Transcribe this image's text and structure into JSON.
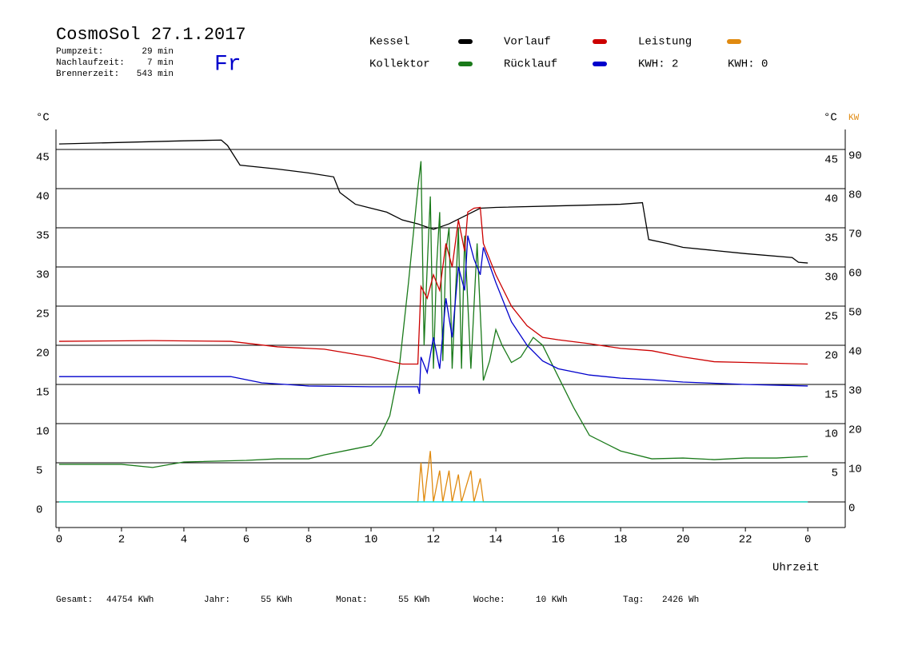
{
  "header": {
    "title": "CosmoSol 27.1.2017",
    "day": "Fr",
    "stats": [
      {
        "label": "Pumpzeit:",
        "value": "29 min"
      },
      {
        "label": "Nachlaufzeit:",
        "value": "7 min"
      },
      {
        "label": "Brennerzeit:",
        "value": "543 min"
      }
    ],
    "kwh": [
      {
        "text": "KWH: 2",
        "color": "#e08a10"
      },
      {
        "text": "KWH: 0",
        "color": "#8b2f8b"
      }
    ]
  },
  "chart_data": {
    "type": "line",
    "ylabel": "°C",
    "ylabel_right": "°C",
    "y2label": "KW",
    "xlabel": "Uhrzeit",
    "xlim": [
      -0.1,
      25.2
    ],
    "ylim": [
      -3.27,
      47.55
    ],
    "y2lim": [
      -6.54,
      95.1
    ],
    "xticks": [
      0,
      2,
      4,
      6,
      8,
      10,
      12,
      14,
      16,
      18,
      20,
      22,
      {
        "value": 24,
        "label": "0"
      }
    ],
    "yticks": [
      0,
      5,
      10,
      15,
      20,
      25,
      30,
      35,
      40,
      45
    ],
    "yticks_right": [
      5,
      10,
      15,
      20,
      25,
      30,
      35,
      40,
      45
    ],
    "y2ticks": [
      0,
      10,
      20,
      30,
      40,
      50,
      60,
      70,
      80,
      90
    ],
    "grid": true,
    "series": [
      {
        "name": "Kessel",
        "color": "#000000",
        "x": [
          0,
          2,
          4,
          5.2,
          5.4,
          5.8,
          7,
          8,
          8.8,
          9,
          9.5,
          10,
          10.5,
          11,
          11.5,
          12,
          12.5,
          13,
          13.5,
          14,
          16,
          18,
          18.7,
          18.9,
          19.5,
          20,
          22,
          23.5,
          23.7,
          24
        ],
        "values": [
          45.7,
          45.9,
          46.1,
          46.2,
          45.5,
          43,
          42.5,
          42,
          41.5,
          39.5,
          38,
          37.5,
          37,
          36,
          35.5,
          34.8,
          35.5,
          36.5,
          37.5,
          37.6,
          37.8,
          38,
          38.2,
          33.5,
          33,
          32.5,
          31.7,
          31.2,
          30.6,
          30.5
        ]
      },
      {
        "name": "Kollektor",
        "color": "#1a7a1a",
        "x": [
          0,
          2,
          3,
          4,
          6,
          7,
          8,
          8.5,
          9.5,
          10,
          10.3,
          10.6,
          10.9,
          11.2,
          11.5,
          11.6,
          11.7,
          11.8,
          11.9,
          12,
          12.1,
          12.2,
          12.3,
          12.4,
          12.5,
          12.6,
          12.8,
          12.9,
          13,
          13.2,
          13.4,
          13.6,
          13.8,
          14,
          14.2,
          14.5,
          14.8,
          15.2,
          15.5,
          16,
          16.5,
          17,
          18,
          19,
          20,
          21,
          22,
          23,
          24
        ],
        "values": [
          4.8,
          4.8,
          4.4,
          5.1,
          5.3,
          5.5,
          5.5,
          6,
          6.8,
          7.2,
          8.5,
          11,
          17,
          28,
          40,
          43.5,
          20,
          30,
          39,
          17,
          30,
          37,
          18,
          32,
          35,
          17,
          35,
          17,
          34,
          17,
          33,
          15.5,
          18,
          22,
          20,
          17.8,
          18.5,
          21,
          20,
          16,
          12,
          8.5,
          6.5,
          5.5,
          5.6,
          5.4,
          5.6,
          5.6,
          5.8
        ]
      },
      {
        "name": "Vorlauf",
        "color": "#cc0000",
        "x": [
          0,
          3,
          5.5,
          7,
          8.5,
          10,
          11,
          11.5,
          11.6,
          11.8,
          12,
          12.2,
          12.4,
          12.6,
          12.8,
          13,
          13.1,
          13.3,
          13.5,
          13.6,
          14,
          14.5,
          15,
          15.5,
          16,
          17,
          18,
          19,
          20,
          21,
          22,
          24
        ],
        "values": [
          20.5,
          20.6,
          20.5,
          19.8,
          19.5,
          18.5,
          17.6,
          17.6,
          27.5,
          26,
          29,
          27,
          33,
          30,
          36,
          32,
          37,
          37.5,
          37.6,
          33,
          29,
          25,
          22.5,
          21,
          20.7,
          20.2,
          19.6,
          19.3,
          18.5,
          17.9,
          17.8,
          17.6
        ]
      },
      {
        "name": "Rücklauf",
        "color": "#0000cc",
        "x": [
          0,
          5.5,
          6.5,
          8,
          10,
          11.5,
          11.55,
          11.6,
          11.8,
          12,
          12.2,
          12.4,
          12.6,
          12.8,
          13,
          13.1,
          13.3,
          13.5,
          13.6,
          14,
          14.5,
          15,
          15.5,
          16,
          17,
          18,
          19,
          20,
          22,
          24
        ],
        "values": [
          16,
          16,
          15.2,
          14.8,
          14.7,
          14.7,
          13.8,
          18.5,
          16.5,
          21,
          17,
          26,
          21,
          30,
          27,
          34,
          31,
          29,
          32.5,
          28,
          23,
          20,
          18,
          17,
          16.2,
          15.8,
          15.6,
          15.3,
          15,
          14.8
        ]
      },
      {
        "name": "Leistung",
        "color": "#e08a10",
        "axis": "y2",
        "x": [
          0,
          11.5,
          11.6,
          11.7,
          11.9,
          12,
          12.2,
          12.3,
          12.5,
          12.6,
          12.8,
          12.9,
          13.2,
          13.3,
          13.5,
          13.6,
          24
        ],
        "values": [
          0,
          0,
          10,
          0,
          13,
          0,
          8,
          0,
          8,
          0,
          7,
          0,
          8,
          0,
          6,
          0,
          0
        ]
      },
      {
        "color": "#00e0e0",
        "x": [
          0,
          24
        ],
        "values": [
          0,
          0
        ]
      }
    ]
  },
  "footer": [
    {
      "label": "Gesamt:",
      "value": "44754 KWh"
    },
    {
      "label": "Jahr:",
      "value": "55 KWh"
    },
    {
      "label": "Monat:",
      "value": "55 KWh"
    },
    {
      "label": "Woche:",
      "value": "10 KWh"
    },
    {
      "label": "Tag:",
      "value": "2426 Wh"
    }
  ]
}
